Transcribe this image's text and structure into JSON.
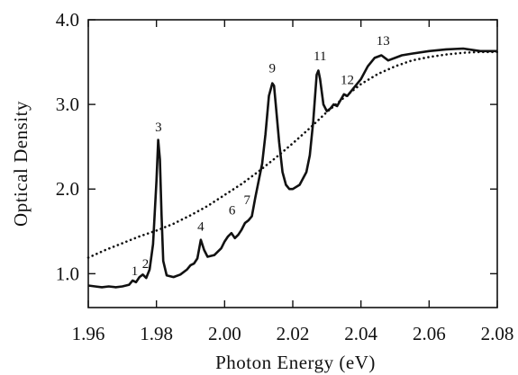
{
  "chart_data": {
    "type": "line",
    "title": "",
    "xlabel": "Photon Energy (eV)",
    "ylabel": "Optical Density",
    "xlim": [
      1.96,
      2.08
    ],
    "ylim": [
      0.6,
      4.0
    ],
    "xticks": [
      1.96,
      1.98,
      2.0,
      2.02,
      2.04,
      2.06,
      2.08
    ],
    "xtick_labels": [
      "1.96",
      "1.98",
      "2.00",
      "2.02",
      "2.04",
      "2.06",
      "2.08"
    ],
    "yticks": [
      1.0,
      2.0,
      3.0,
      4.0
    ],
    "ytick_labels": [
      "1.0",
      "2.0",
      "3.0",
      "4.0"
    ],
    "grid": false,
    "legend": "none",
    "series": [
      {
        "style": "solid",
        "color": "#111111",
        "x": [
          1.96,
          1.962,
          1.964,
          1.966,
          1.968,
          1.97,
          1.972,
          1.973,
          1.974,
          1.975,
          1.976,
          1.977,
          1.978,
          1.979,
          1.98,
          1.9805,
          1.981,
          1.9815,
          1.982,
          1.983,
          1.985,
          1.987,
          1.989,
          1.99,
          1.991,
          1.992,
          1.993,
          1.994,
          1.995,
          1.997,
          1.999,
          2.0,
          2.001,
          2.002,
          2.003,
          2.004,
          2.005,
          2.006,
          2.007,
          2.008,
          2.009,
          2.01,
          2.011,
          2.012,
          2.013,
          2.014,
          2.0145,
          2.015,
          2.016,
          2.017,
          2.018,
          2.019,
          2.02,
          2.022,
          2.024,
          2.025,
          2.026,
          2.027,
          2.0275,
          2.028,
          2.029,
          2.03,
          2.031,
          2.032,
          2.033,
          2.034,
          2.035,
          2.036,
          2.038,
          2.04,
          2.042,
          2.044,
          2.046,
          2.048,
          2.05,
          2.052,
          2.055,
          2.06,
          2.065,
          2.07,
          2.075,
          2.08
        ],
        "y": [
          0.86,
          0.85,
          0.84,
          0.85,
          0.84,
          0.85,
          0.87,
          0.92,
          0.9,
          0.96,
          0.99,
          0.95,
          1.05,
          1.35,
          2.1,
          2.58,
          2.35,
          1.7,
          1.15,
          0.98,
          0.96,
          0.99,
          1.05,
          1.1,
          1.12,
          1.18,
          1.4,
          1.28,
          1.2,
          1.22,
          1.3,
          1.38,
          1.44,
          1.48,
          1.42,
          1.46,
          1.52,
          1.6,
          1.63,
          1.68,
          1.9,
          2.1,
          2.3,
          2.65,
          3.1,
          3.25,
          3.22,
          3.0,
          2.55,
          2.2,
          2.05,
          2.0,
          2.0,
          2.05,
          2.2,
          2.4,
          2.8,
          3.35,
          3.4,
          3.3,
          3.0,
          2.92,
          2.95,
          3.0,
          2.98,
          3.05,
          3.12,
          3.1,
          3.2,
          3.3,
          3.45,
          3.55,
          3.58,
          3.52,
          3.55,
          3.58,
          3.6,
          3.63,
          3.65,
          3.66,
          3.63,
          3.63
        ]
      },
      {
        "style": "dotted",
        "color": "#111111",
        "x": [
          1.96,
          1.965,
          1.97,
          1.975,
          1.98,
          1.985,
          1.99,
          1.995,
          2.0,
          2.005,
          2.01,
          2.015,
          2.02,
          2.025,
          2.03,
          2.035,
          2.04,
          2.045,
          2.05,
          2.055,
          2.06,
          2.065,
          2.07,
          2.075,
          2.08
        ],
        "y": [
          1.19,
          1.28,
          1.36,
          1.44,
          1.51,
          1.59,
          1.69,
          1.8,
          1.93,
          2.06,
          2.21,
          2.37,
          2.54,
          2.72,
          2.91,
          3.08,
          3.24,
          3.36,
          3.45,
          3.52,
          3.56,
          3.59,
          3.61,
          3.62,
          3.62
        ]
      }
    ],
    "annotations": [
      {
        "text": "1",
        "x": 1.9736,
        "y": 0.98
      },
      {
        "text": "2",
        "x": 1.9768,
        "y": 1.07
      },
      {
        "text": "3",
        "x": 1.9806,
        "y": 2.68
      },
      {
        "text": "4",
        "x": 1.993,
        "y": 1.51
      },
      {
        "text": "6",
        "x": 2.0022,
        "y": 1.7
      },
      {
        "text": "7",
        "x": 2.0066,
        "y": 1.82
      },
      {
        "text": "9",
        "x": 2.014,
        "y": 3.38
      },
      {
        "text": "11",
        "x": 2.028,
        "y": 3.52
      },
      {
        "text": "12",
        "x": 2.036,
        "y": 3.24
      },
      {
        "text": "13",
        "x": 2.0465,
        "y": 3.7
      }
    ]
  }
}
